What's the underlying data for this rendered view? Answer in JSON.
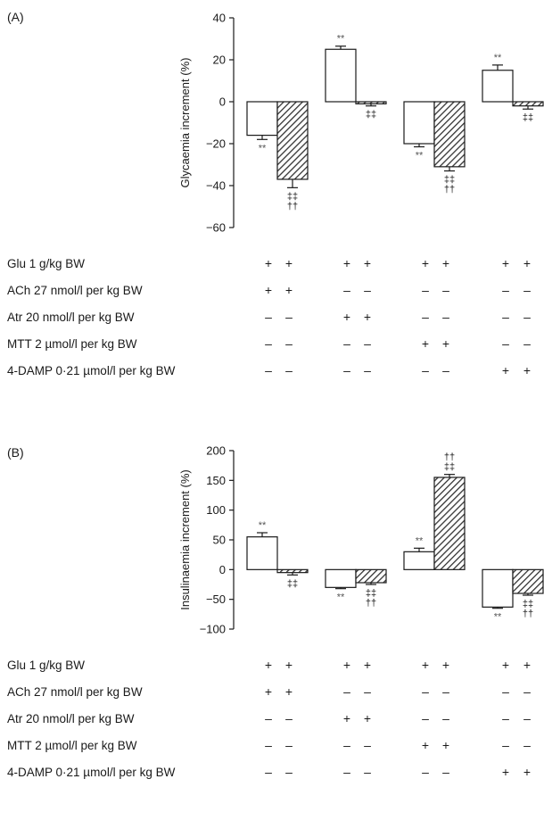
{
  "chart_data": [
    {
      "panel": "(A)",
      "type": "bar",
      "ylabel": "Glycaemia increment (%)",
      "ylim": [
        -60,
        40
      ],
      "yticks": [
        40,
        20,
        0,
        -20,
        -40,
        -60
      ],
      "ytick_labels": [
        "40",
        "20",
        "0",
        "−20",
        "−40",
        "−60"
      ],
      "groups": [
        {
          "bars": [
            {
              "value": -16,
              "err": 2,
              "pattern": "open",
              "sig": [
                "**"
              ]
            },
            {
              "value": -37,
              "err": 4,
              "pattern": "hatched",
              "sig": [
                "‡‡",
                "††"
              ]
            }
          ]
        },
        {
          "bars": [
            {
              "value": 25,
              "err": 1.5,
              "pattern": "open",
              "sig": [
                "**"
              ]
            },
            {
              "value": -1,
              "err": 1,
              "pattern": "hatched",
              "sig": [
                "‡‡"
              ]
            }
          ]
        },
        {
          "bars": [
            {
              "value": -20,
              "err": 1.5,
              "pattern": "open",
              "sig": [
                "**"
              ]
            },
            {
              "value": -31,
              "err": 2,
              "pattern": "hatched",
              "sig": [
                "‡‡",
                "††"
              ]
            }
          ]
        },
        {
          "bars": [
            {
              "value": 15,
              "err": 2.5,
              "pattern": "open",
              "sig": [
                "**"
              ]
            },
            {
              "value": -2,
              "err": 1.5,
              "pattern": "hatched",
              "sig": [
                "‡‡"
              ]
            }
          ]
        }
      ],
      "conditions": [
        {
          "label": "Glu 1 g/kg BW",
          "signs": [
            "+",
            "+",
            "+",
            "+",
            "+",
            "+",
            "+",
            "+"
          ]
        },
        {
          "label": "ACh 27 nmol/l per kg BW",
          "signs": [
            "+",
            "+",
            "–",
            "–",
            "–",
            "–",
            "–",
            "–"
          ]
        },
        {
          "label": "Atr 20 nmol/l per kg BW",
          "signs": [
            "–",
            "–",
            "+",
            "+",
            "–",
            "–",
            "–",
            "–"
          ]
        },
        {
          "label": "MTT 2 µmol/l per kg BW",
          "signs": [
            "–",
            "–",
            "–",
            "–",
            "+",
            "+",
            "–",
            "–"
          ]
        },
        {
          "label": "4-DAMP 0·21 µmol/l per kg BW",
          "signs": [
            "–",
            "–",
            "–",
            "–",
            "–",
            "–",
            "+",
            "+"
          ]
        }
      ]
    },
    {
      "panel": "(B)",
      "type": "bar",
      "ylabel": "Insulinaemia increment (%)",
      "ylim": [
        -100,
        200
      ],
      "yticks": [
        200,
        150,
        100,
        50,
        0,
        -50,
        -100
      ],
      "ytick_labels": [
        "200",
        "150",
        "100",
        "50",
        "0",
        "−50",
        "−100"
      ],
      "groups": [
        {
          "bars": [
            {
              "value": 55,
              "err": 7,
              "pattern": "open",
              "sig": [
                "**"
              ]
            },
            {
              "value": -5,
              "err": 4,
              "pattern": "hatched",
              "sig": [
                "‡‡"
              ]
            }
          ]
        },
        {
          "bars": [
            {
              "value": -30,
              "err": 2,
              "pattern": "open",
              "sig": [
                "**"
              ]
            },
            {
              "value": -22,
              "err": 3,
              "pattern": "hatched",
              "sig": [
                "‡‡",
                "††"
              ]
            }
          ]
        },
        {
          "bars": [
            {
              "value": 30,
              "err": 6,
              "pattern": "open",
              "sig": [
                "**"
              ]
            },
            {
              "value": 155,
              "err": 5,
              "pattern": "hatched",
              "sig": [
                "††",
                "‡‡"
              ]
            }
          ]
        },
        {
          "bars": [
            {
              "value": -63,
              "err": 2,
              "pattern": "open",
              "sig": [
                "**"
              ]
            },
            {
              "value": -40,
              "err": 3,
              "pattern": "hatched",
              "sig": [
                "‡‡",
                "††"
              ]
            }
          ]
        }
      ],
      "conditions": [
        {
          "label": "Glu 1 g/kg BW",
          "signs": [
            "+",
            "+",
            "+",
            "+",
            "+",
            "+",
            "+",
            "+"
          ]
        },
        {
          "label": "ACh 27 nmol/l per kg BW",
          "signs": [
            "+",
            "+",
            "–",
            "–",
            "–",
            "–",
            "–",
            "–"
          ]
        },
        {
          "label": "Atr 20 nmol/l per kg BW",
          "signs": [
            "–",
            "–",
            "+",
            "+",
            "–",
            "–",
            "–",
            "–"
          ]
        },
        {
          "label": "MTT 2 µmol/l per kg BW",
          "signs": [
            "–",
            "–",
            "–",
            "–",
            "+",
            "+",
            "–",
            "–"
          ]
        },
        {
          "label": "4-DAMP 0·21 µmol/l per kg BW",
          "signs": [
            "–",
            "–",
            "–",
            "–",
            "–",
            "–",
            "+",
            "+"
          ]
        }
      ]
    }
  ]
}
